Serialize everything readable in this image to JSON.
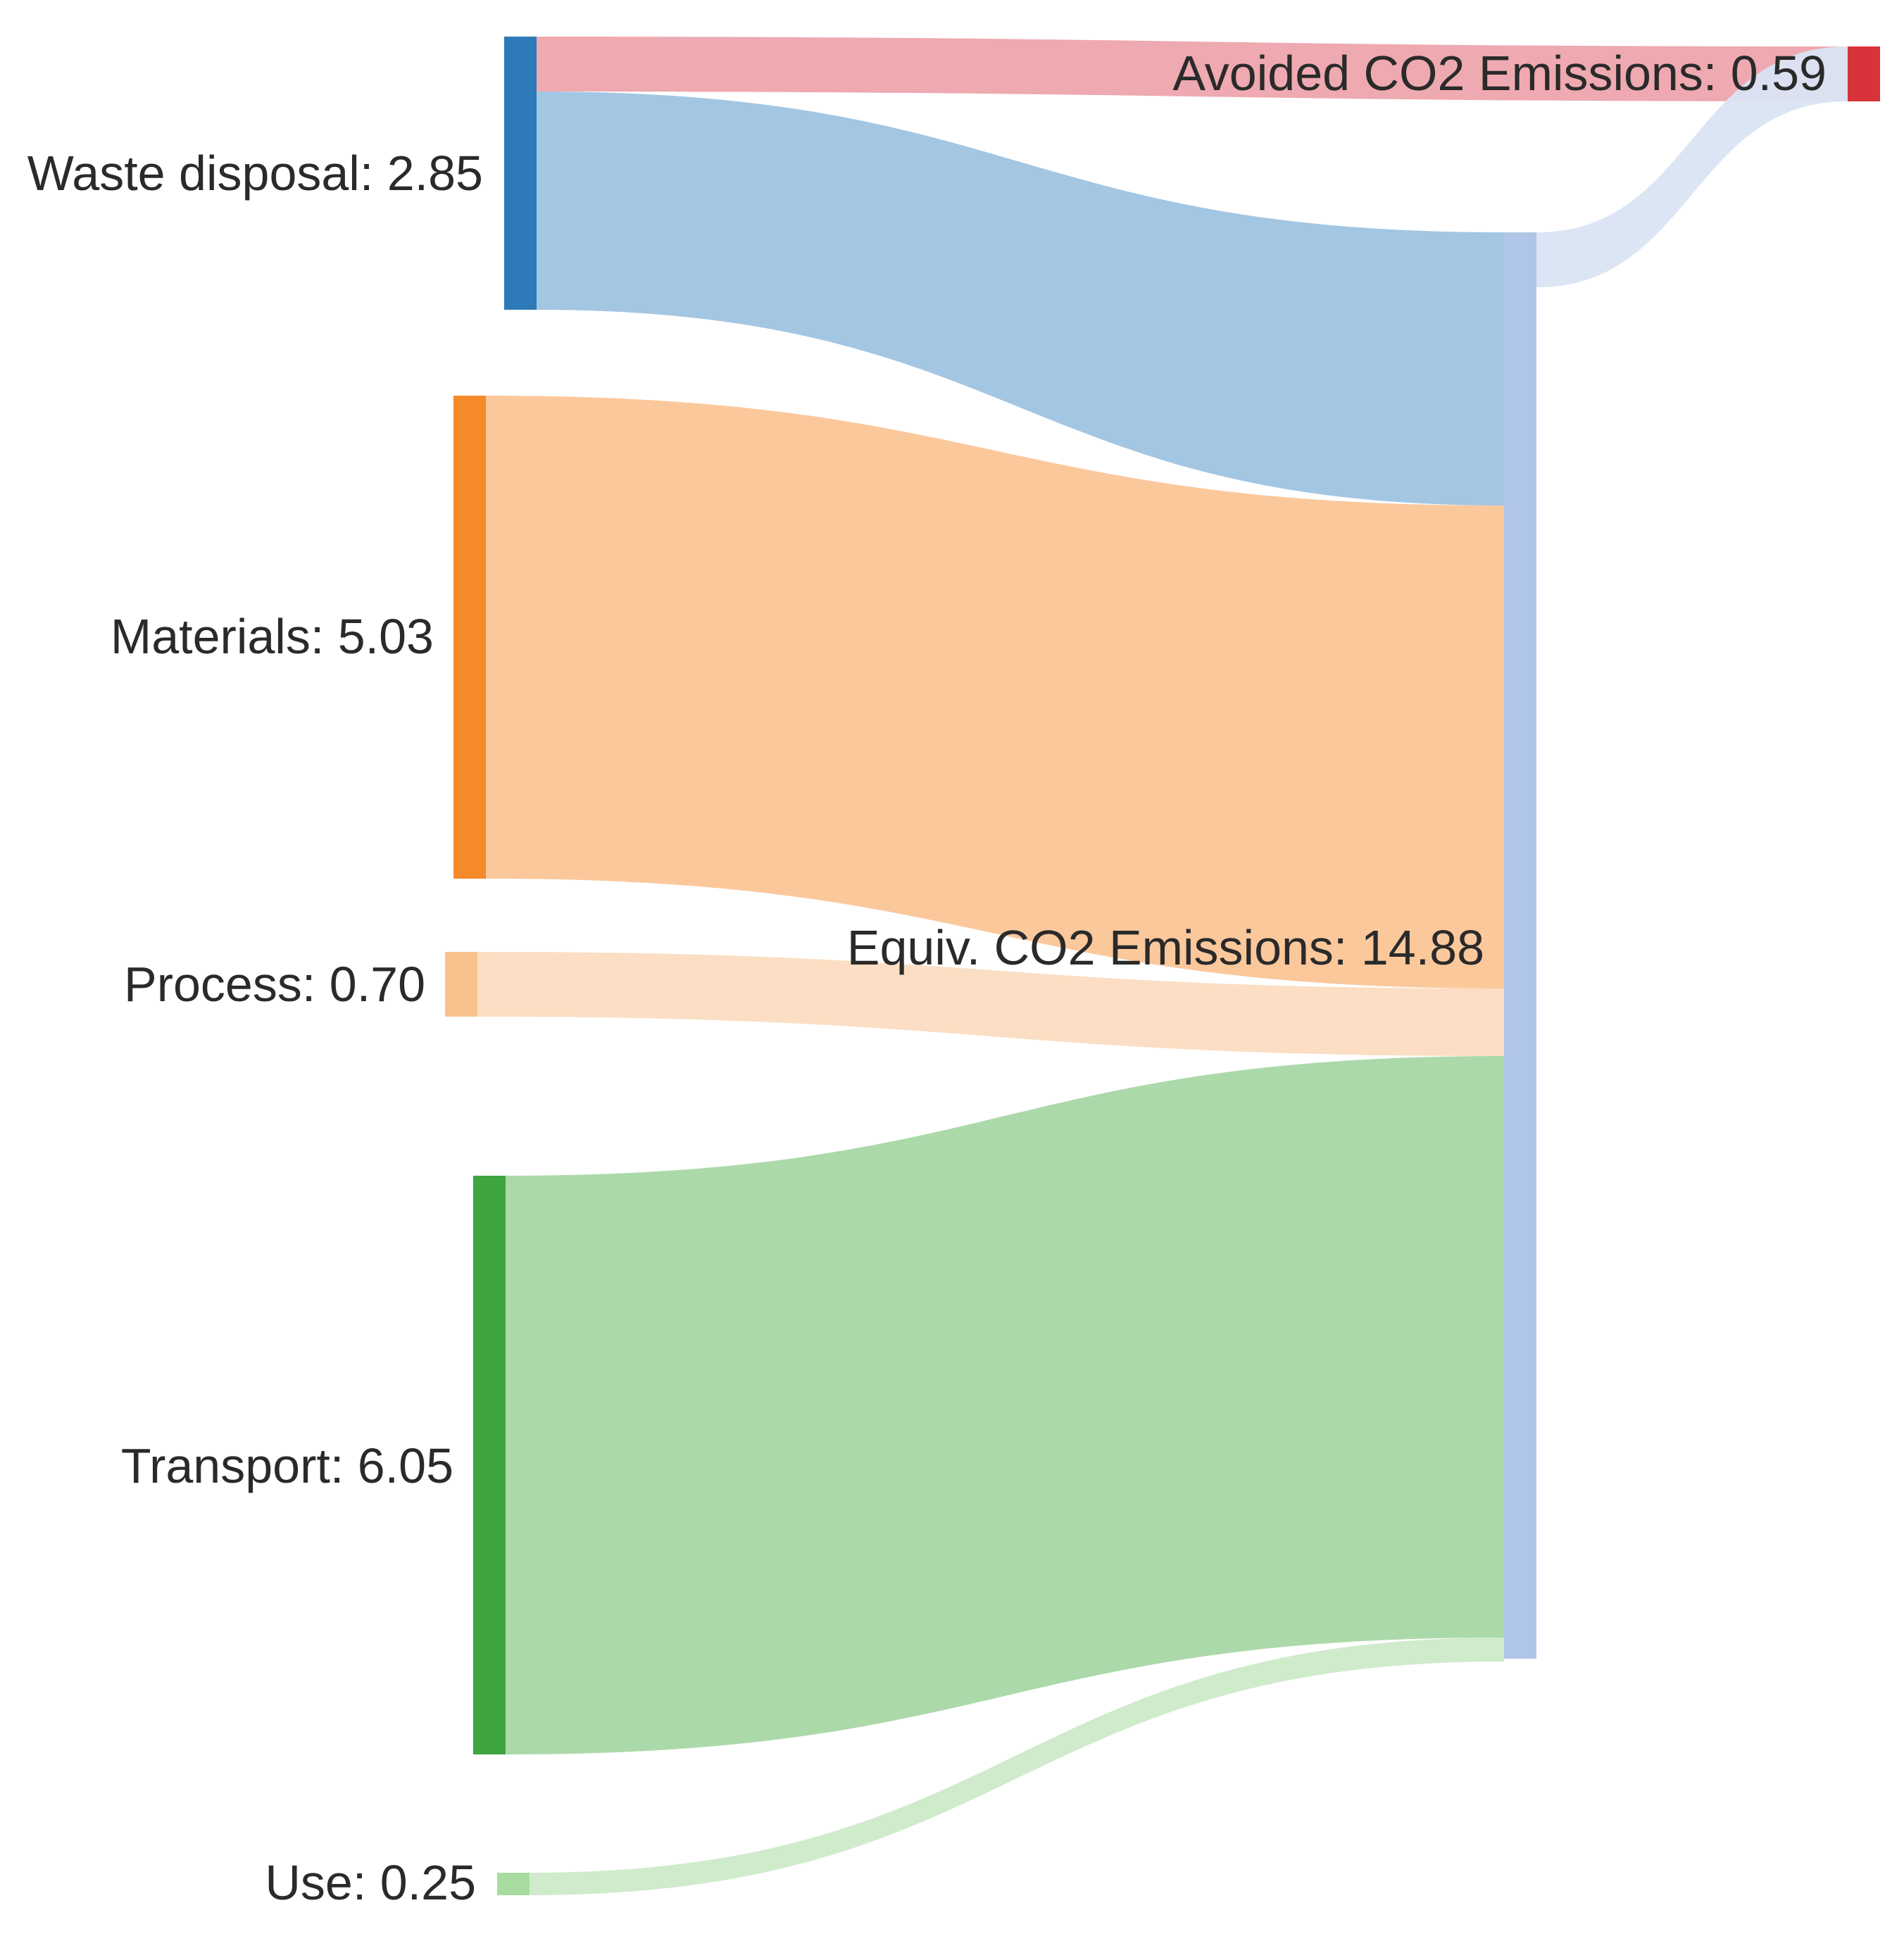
{
  "chart_data": {
    "type": "sankey",
    "title": "",
    "nodes": [
      {
        "id": "waste",
        "label": "Waste disposal: 2.85",
        "value": 2.85,
        "color": "#2e7ab8"
      },
      {
        "id": "materials",
        "label": "Materials: 5.03",
        "value": 5.03,
        "color": "#f6892a"
      },
      {
        "id": "process",
        "label": "Process: 0.70",
        "value": 0.7,
        "color": "#f9c18c"
      },
      {
        "id": "transport",
        "label": "Transport: 6.05",
        "value": 6.05,
        "color": "#3ea540"
      },
      {
        "id": "use",
        "label": "Use: 0.25",
        "value": 0.25,
        "color": "#a8dba0"
      },
      {
        "id": "equiv",
        "label": "Equiv. CO2 Emissions: 14.88",
        "value": 14.88,
        "color": "#b0c6e8"
      },
      {
        "id": "avoided",
        "label": "Avoided CO2 Emissions: 0.59",
        "value": 0.59,
        "color": "#d8333a"
      }
    ],
    "links": [
      {
        "source": "waste",
        "target": "avoided",
        "value": 0.59,
        "color": "#e88c97"
      },
      {
        "source": "waste",
        "target": "equiv",
        "value": 2.85,
        "color": "#9ec3e2"
      },
      {
        "source": "materials",
        "target": "equiv",
        "value": 5.03,
        "color": "#fbc597"
      },
      {
        "source": "process",
        "target": "equiv",
        "value": 0.7,
        "color": "#fbdcc0"
      },
      {
        "source": "transport",
        "target": "equiv",
        "value": 6.05,
        "color": "#a8d7a5"
      },
      {
        "source": "use",
        "target": "equiv",
        "value": 0.25,
        "color": "#cdeac9"
      },
      {
        "source": "equiv",
        "target": "avoided",
        "value": 0.59,
        "color": "#d9e4f3"
      }
    ]
  }
}
